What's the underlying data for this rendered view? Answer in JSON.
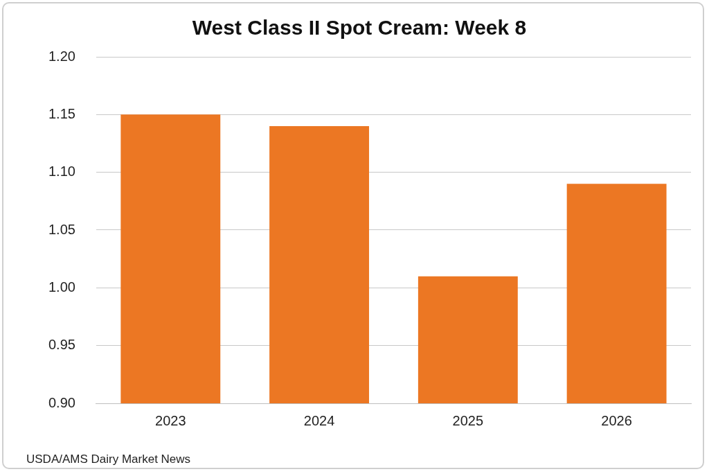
{
  "chart_data": {
    "type": "bar",
    "title": "West Class II Spot Cream: Week 8",
    "categories": [
      "2023",
      "2024",
      "2025",
      "2026"
    ],
    "values": [
      1.15,
      1.14,
      1.01,
      1.09
    ],
    "color": "#ec7723",
    "ylim": [
      0.9,
      1.2
    ],
    "yticks": [
      {
        "value": 0.9,
        "label": "0.90"
      },
      {
        "value": 0.95,
        "label": "0.95"
      },
      {
        "value": 1.0,
        "label": "1.00"
      },
      {
        "value": 1.05,
        "label": "1.05"
      },
      {
        "value": 1.1,
        "label": "1.10"
      },
      {
        "value": 1.15,
        "label": "1.15"
      },
      {
        "value": 1.2,
        "label": "1.20"
      }
    ],
    "grid": "y",
    "legend": false,
    "annotations": [
      "USDA/AMS Dairy Market News"
    ]
  }
}
